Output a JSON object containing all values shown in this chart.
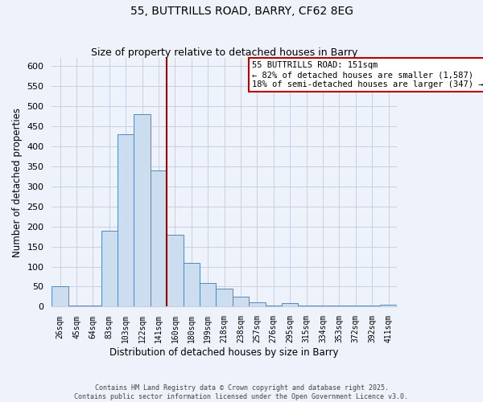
{
  "title": "55, BUTTRILLS ROAD, BARRY, CF62 8EG",
  "subtitle": "Size of property relative to detached houses in Barry",
  "xlabel": "Distribution of detached houses by size in Barry",
  "ylabel": "Number of detached properties",
  "bar_labels": [
    "26sqm",
    "45sqm",
    "64sqm",
    "83sqm",
    "103sqm",
    "122sqm",
    "141sqm",
    "160sqm",
    "180sqm",
    "199sqm",
    "218sqm",
    "238sqm",
    "257sqm",
    "276sqm",
    "295sqm",
    "315sqm",
    "334sqm",
    "353sqm",
    "372sqm",
    "392sqm",
    "411sqm"
  ],
  "bar_values": [
    50,
    2,
    2,
    190,
    430,
    480,
    340,
    180,
    110,
    60,
    45,
    25,
    10,
    2,
    8,
    2,
    2,
    2,
    2,
    2,
    5
  ],
  "bar_color": "#ccddf0",
  "bar_edge_color": "#5588bb",
  "vline_color": "#990000",
  "annotation_title": "55 BUTTRILLS ROAD: 151sqm",
  "annotation_line1": "← 82% of detached houses are smaller (1,587)",
  "annotation_line2": "18% of semi-detached houses are larger (347) →",
  "annotation_box_edge": "#bb0000",
  "ylim": [
    0,
    620
  ],
  "yticks": [
    0,
    50,
    100,
    150,
    200,
    250,
    300,
    350,
    400,
    450,
    500,
    550,
    600
  ],
  "footer1": "Contains HM Land Registry data © Crown copyright and database right 2025.",
  "footer2": "Contains public sector information licensed under the Open Government Licence v3.0.",
  "bg_color": "#eef2fa",
  "grid_color": "#c8cfe0",
  "title_fontsize": 10,
  "subtitle_fontsize": 9
}
